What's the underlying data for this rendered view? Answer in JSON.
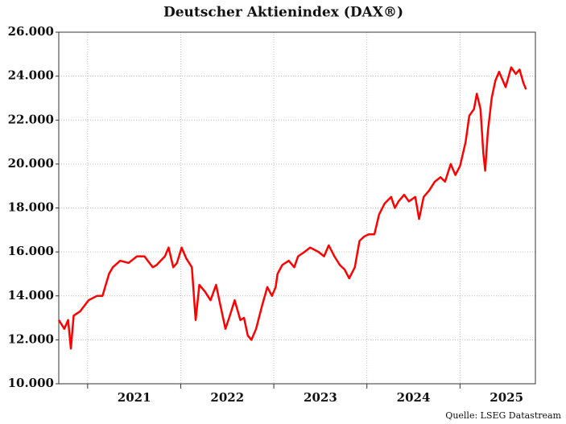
{
  "chart_data": {
    "type": "line",
    "title": "Deutscher Aktienindex (DAX®)",
    "source": "Quelle: LSEG Datastream",
    "x": [
      2020.69,
      2020.75,
      2020.79,
      2020.82,
      2020.85,
      2020.92,
      2021.01,
      2021.1,
      2021.16,
      2021.23,
      2021.27,
      2021.35,
      2021.44,
      2021.53,
      2021.61,
      2021.7,
      2021.74,
      2021.83,
      2021.87,
      2021.92,
      2021.96,
      2022.01,
      2022.06,
      2022.12,
      2022.16,
      2022.2,
      2022.26,
      2022.32,
      2022.38,
      2022.44,
      2022.48,
      2022.52,
      2022.58,
      2022.64,
      2022.68,
      2022.72,
      2022.76,
      2022.81,
      2022.87,
      2022.93,
      2022.98,
      2023.02,
      2023.04,
      2023.09,
      2023.16,
      2023.22,
      2023.26,
      2023.33,
      2023.39,
      2023.48,
      2023.54,
      2023.59,
      2023.65,
      2023.71,
      2023.76,
      2023.81,
      2023.87,
      2023.92,
      2023.97,
      2024.02,
      2024.08,
      2024.13,
      2024.19,
      2024.26,
      2024.3,
      2024.34,
      2024.4,
      2024.45,
      2024.52,
      2024.56,
      2024.61,
      2024.67,
      2024.73,
      2024.79,
      2024.84,
      2024.9,
      2024.95,
      2025.0,
      2025.06,
      2025.1,
      2025.15,
      2025.18,
      2025.22,
      2025.25,
      2025.27,
      2025.3,
      2025.34,
      2025.38,
      2025.42,
      2025.49,
      2025.55,
      2025.6,
      2025.64,
      2025.68,
      2025.71
    ],
    "series": [
      {
        "name": "DAX",
        "color": "#ff0000",
        "values": [
          12900,
          12500,
          12900,
          11600,
          13100,
          13300,
          13800,
          14000,
          14000,
          15000,
          15300,
          15600,
          15500,
          15800,
          15800,
          15300,
          15400,
          15800,
          16200,
          15300,
          15500,
          16200,
          15700,
          15300,
          12900,
          14500,
          14200,
          13800,
          14500,
          13300,
          12500,
          13000,
          13800,
          12900,
          13000,
          12200,
          12000,
          12500,
          13500,
          14400,
          14000,
          14400,
          15000,
          15400,
          15600,
          15300,
          15800,
          16000,
          16200,
          16000,
          15800,
          16300,
          15800,
          15400,
          15200,
          14800,
          15300,
          16500,
          16700,
          16800,
          16800,
          17700,
          18200,
          18500,
          18000,
          18300,
          18600,
          18300,
          18500,
          17500,
          18500,
          18800,
          19200,
          19400,
          19200,
          20000,
          19500,
          19900,
          21000,
          22200,
          22500,
          23200,
          22500,
          20500,
          19700,
          21500,
          23000,
          23800,
          24200,
          23500,
          24400,
          24100,
          24300,
          23700,
          23400
        ]
      }
    ],
    "xlim": [
      2020.69,
      2025.81
    ],
    "xticks": [
      {
        "value": 2021.5,
        "label": "2021"
      },
      {
        "value": 2022.5,
        "label": "2022"
      },
      {
        "value": 2023.5,
        "label": "2023"
      },
      {
        "value": 2024.5,
        "label": "2024"
      },
      {
        "value": 2025.5,
        "label": "2025"
      }
    ],
    "xgrid": [
      2021,
      2022,
      2023,
      2024,
      2025
    ],
    "ylim": [
      10000,
      26000
    ],
    "yticks": [
      {
        "value": 10000,
        "label": "10.000"
      },
      {
        "value": 12000,
        "label": "12.000"
      },
      {
        "value": 14000,
        "label": "14.000"
      },
      {
        "value": 16000,
        "label": "16.000"
      },
      {
        "value": 18000,
        "label": "18.000"
      },
      {
        "value": 20000,
        "label": "20.000"
      },
      {
        "value": 22000,
        "label": "22.000"
      },
      {
        "value": 24000,
        "label": "24.000"
      },
      {
        "value": 26000,
        "label": "26.000"
      }
    ],
    "grid": true
  }
}
